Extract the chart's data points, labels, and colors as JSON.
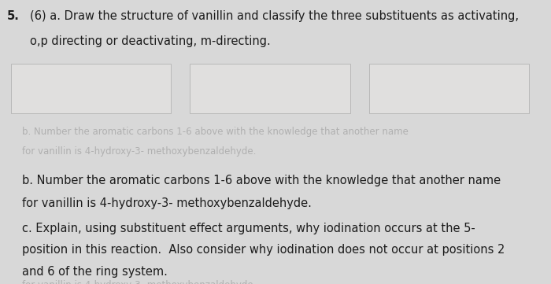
{
  "bg_color": "#d8d8d8",
  "page_color": "#f0efee",
  "title_number": "5.",
  "title_points": "(6)",
  "line1": "a. Draw the structure of vanillin and classify the three substituents as activating,",
  "line2": "o,p directing or deactivating, m-directing.",
  "part_b_line1": "b. Number the aromatic carbons 1-6 above with the knowledge that another name",
  "part_b_line2": "for vanillin is 4-hydroxy-3- methoxybenzaldehyde.",
  "part_c_line1": "c. Explain, using substituent effect arguments, why iodination occurs at the 5-",
  "part_c_line2": "position in this reaction.  Also consider why iodination does not occur at positions 2",
  "part_c_line3": "and 6 of the ring system.",
  "faded_line1": "b. Number the aromatic carbons 1-6 above with the knowledge that another name",
  "faded_line2": "for vanillin is 4-hydroxy-3- methoxybenzaldehyde.",
  "faded_line3": "c. Explain, using substituent effect arguments, why iodination occurs at the 5-",
  "faded_line4": "position in this reaction.  Also consider why iodination does not occur at positions 2",
  "faded_bottom1": "for vanillin is 4-hydroxy-3- methoxybenzaldehyde.",
  "faded_bottom2": "and 6 of the ring system.",
  "font_size_main": 10.5,
  "font_size_faded": 8.5,
  "text_color": "#1c1c1c",
  "faded_color": "#b0b0b0",
  "box_face": "#e0dfde",
  "box_edge": "#b8b8b8"
}
